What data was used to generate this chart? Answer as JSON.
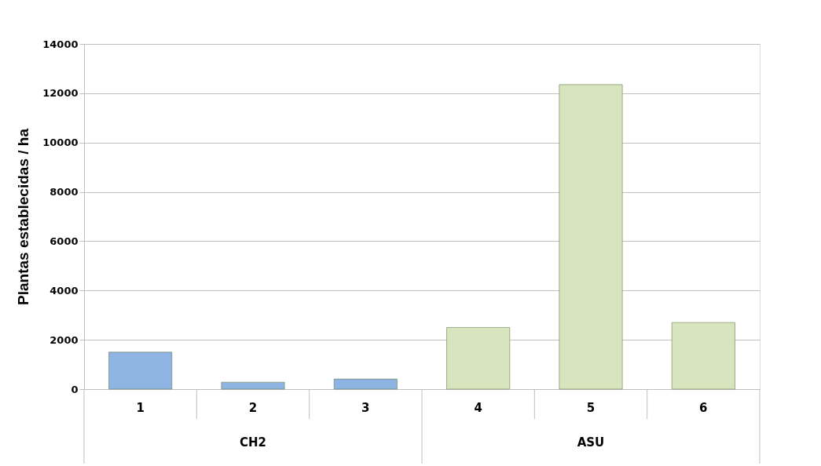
{
  "chart_data": {
    "type": "bar",
    "ylabel": "Plantas establecidas / ha",
    "categories": [
      "1",
      "2",
      "3",
      "4",
      "5",
      "6"
    ],
    "series": [
      {
        "color": "#8eb4e3",
        "values": [
          1500,
          280,
          410,
          null,
          null,
          null
        ]
      },
      {
        "color": "#d7e4bd",
        "values": [
          null,
          null,
          null,
          2500,
          12350,
          2700
        ]
      }
    ],
    "annotations": [
      "CH2",
      "ASU"
    ],
    "ylim": [
      0,
      14000
    ],
    "yticks": [
      0,
      2000,
      4000,
      6000,
      8000,
      10000,
      12000,
      14000
    ],
    "grid": "y",
    "legend": false
  }
}
